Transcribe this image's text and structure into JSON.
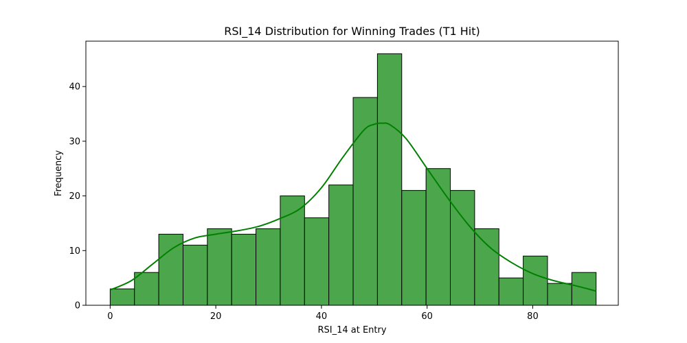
{
  "colors": {
    "bar_fill": "#4ca64c",
    "bar_edge": "#000000",
    "kde_line": "#008000",
    "axes": "#000000",
    "background": "#ffffff"
  },
  "chart_data": {
    "type": "bar",
    "title": "RSI_14 Distribution for Winning Trades (T1 Hit)",
    "xlabel": "RSI_14 at Entry",
    "ylabel": "Frequency",
    "xlim": [
      -4.6,
      96.2
    ],
    "ylim": [
      0,
      48.3
    ],
    "x_ticks": [
      0,
      20,
      40,
      60,
      80
    ],
    "y_ticks": [
      0,
      10,
      20,
      30,
      40
    ],
    "grid": false,
    "bin_edges": [
      0,
      4.6,
      9.2,
      13.8,
      18.4,
      23.0,
      27.6,
      32.2,
      36.8,
      41.4,
      46.0,
      50.6,
      55.2,
      59.8,
      64.4,
      69.0,
      73.6,
      78.2,
      82.8,
      87.4,
      92.0
    ],
    "counts": [
      3,
      6,
      13,
      11,
      14,
      13,
      14,
      20,
      16,
      22,
      38,
      46,
      21,
      25,
      21,
      14,
      5,
      9,
      4,
      6
    ],
    "kde": {
      "x": [
        0,
        4,
        8,
        12,
        16,
        20,
        24,
        28,
        32,
        36,
        40,
        44,
        48,
        50,
        51.5,
        53,
        56,
        60,
        64,
        68,
        72,
        76,
        80,
        84,
        88,
        92
      ],
      "y": [
        2.8,
        4.5,
        7.5,
        10.5,
        12.3,
        13.0,
        13.6,
        14.4,
        15.8,
        17.7,
        21.5,
        27.0,
        32.0,
        33.1,
        33.3,
        33.0,
        30.5,
        25.0,
        19.5,
        14.5,
        10.5,
        7.8,
        5.8,
        4.5,
        3.6,
        2.6
      ]
    }
  }
}
